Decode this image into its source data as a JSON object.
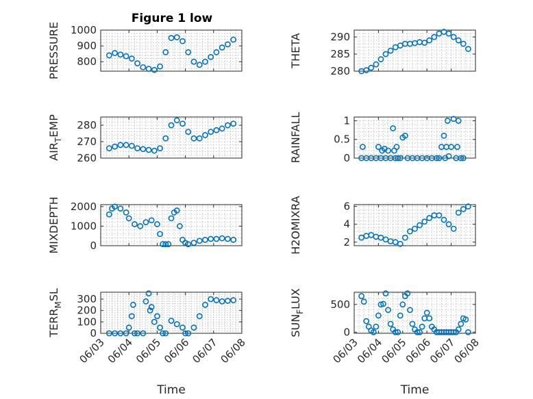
{
  "figure_title": "Figure 1 low",
  "chart_data": [
    {
      "type": "scatter",
      "ylabel": "PRESSURE",
      "title": "Figure 1 low",
      "ylim": [
        740,
        1000
      ],
      "yticks": [
        800,
        900,
        1000
      ],
      "xlim": [
        "06/03",
        "06/08"
      ],
      "x": [
        0.3,
        0.5,
        0.7,
        0.9,
        1.1,
        1.3,
        1.5,
        1.7,
        1.9,
        2.1,
        2.3,
        2.5,
        2.7,
        2.9,
        3.1,
        3.3,
        3.5,
        3.7,
        3.9,
        4.1,
        4.3,
        4.5,
        4.7
      ],
      "y": [
        840,
        855,
        845,
        835,
        820,
        790,
        765,
        755,
        748,
        770,
        860,
        950,
        955,
        930,
        860,
        800,
        780,
        800,
        830,
        860,
        890,
        910,
        940
      ]
    },
    {
      "type": "scatter",
      "ylabel": "THETA",
      "ylim": [
        280,
        292
      ],
      "yticks": [
        280,
        285,
        290
      ],
      "xlim": [
        "06/03",
        "06/08"
      ],
      "x": [
        0.3,
        0.5,
        0.7,
        0.9,
        1.1,
        1.3,
        1.5,
        1.7,
        1.9,
        2.1,
        2.3,
        2.5,
        2.7,
        2.9,
        3.1,
        3.3,
        3.5,
        3.7,
        3.9,
        4.1,
        4.3,
        4.5,
        4.7
      ],
      "y": [
        280,
        280.3,
        281,
        282,
        283.5,
        285,
        286,
        287,
        287.5,
        288,
        288,
        288.2,
        288.5,
        288.3,
        289,
        290,
        291,
        291.5,
        291,
        290,
        289,
        288,
        286.5
      ]
    },
    {
      "type": "scatter",
      "ylabel": "AIR_TEMP",
      "ylim": [
        260,
        285
      ],
      "yticks": [
        260,
        270,
        280
      ],
      "xlim": [
        "06/03",
        "06/08"
      ],
      "x": [
        0.3,
        0.5,
        0.7,
        0.9,
        1.1,
        1.3,
        1.5,
        1.7,
        1.9,
        2.1,
        2.3,
        2.5,
        2.7,
        2.9,
        3.1,
        3.3,
        3.5,
        3.7,
        3.9,
        4.1,
        4.3,
        4.5,
        4.7
      ],
      "y": [
        266,
        267,
        268,
        268,
        267.5,
        266,
        265.5,
        265,
        264.5,
        266,
        272,
        280,
        283,
        281,
        276,
        272,
        272,
        274,
        276,
        277,
        278,
        280,
        281
      ]
    },
    {
      "type": "scatter",
      "ylabel": "RAINFALL",
      "ylim": [
        0,
        1.1
      ],
      "yticks": [
        0,
        0.5,
        1
      ],
      "xlim": [
        "06/03",
        "06/08"
      ],
      "x": [
        0.3,
        0.35,
        0.5,
        0.7,
        0.9,
        1.0,
        1.1,
        1.15,
        1.25,
        1.3,
        1.4,
        1.5,
        1.6,
        1.65,
        1.7,
        1.75,
        1.8,
        1.9,
        2.0,
        2.1,
        2.2,
        2.4,
        2.6,
        2.8,
        3.0,
        3.2,
        3.4,
        3.5,
        3.6,
        3.7,
        3.75,
        3.8,
        3.85,
        3.9,
        4.0,
        4.1,
        4.2,
        4.25,
        4.3,
        4.4,
        4.5
      ],
      "y": [
        0,
        0.3,
        0,
        0,
        0,
        0.3,
        0,
        0.2,
        0.25,
        0,
        0.2,
        0,
        0.8,
        0.2,
        0,
        0.3,
        0,
        0,
        0.55,
        0.6,
        0,
        0,
        0,
        0,
        0,
        0,
        0,
        0,
        0.3,
        0.6,
        0,
        0.3,
        1.0,
        0.05,
        0.3,
        1.05,
        0,
        0.3,
        1.0,
        0,
        0
      ]
    },
    {
      "type": "scatter",
      "ylabel": "MIXDEPTH",
      "ylim": [
        0,
        2100
      ],
      "yticks": [
        0,
        1000,
        2000
      ],
      "xlim": [
        "06/03",
        "06/08"
      ],
      "x": [
        0.3,
        0.4,
        0.5,
        0.7,
        0.9,
        1.0,
        1.2,
        1.4,
        1.6,
        1.8,
        2.0,
        2.1,
        2.2,
        2.3,
        2.4,
        2.5,
        2.6,
        2.7,
        2.8,
        2.9,
        3.0,
        3.1,
        3.3,
        3.5,
        3.7,
        3.9,
        4.1,
        4.3,
        4.5,
        4.7
      ],
      "y": [
        1600,
        1900,
        2000,
        1900,
        1700,
        1400,
        1100,
        1000,
        1200,
        1300,
        1100,
        600,
        80,
        80,
        80,
        1400,
        1700,
        1800,
        1000,
        300,
        150,
        80,
        150,
        250,
        300,
        350,
        350,
        380,
        350,
        300
      ]
    },
    {
      "type": "scatter",
      "ylabel": "H2OMIXRA",
      "ylim": [
        1.6,
        6.2
      ],
      "yticks": [
        2,
        4,
        6
      ],
      "xlim": [
        "06/03",
        "06/08"
      ],
      "x": [
        0.3,
        0.5,
        0.7,
        0.9,
        1.1,
        1.3,
        1.5,
        1.7,
        1.9,
        2.1,
        2.3,
        2.5,
        2.7,
        2.9,
        3.1,
        3.3,
        3.5,
        3.7,
        3.9,
        4.1,
        4.3,
        4.5,
        4.7
      ],
      "y": [
        2.5,
        2.7,
        2.8,
        2.6,
        2.5,
        2.3,
        2.1,
        2.0,
        1.8,
        2.5,
        3.2,
        3.5,
        3.9,
        4.3,
        4.7,
        5.0,
        5.0,
        4.5,
        4.0,
        3.5,
        5.3,
        5.7,
        6.0
      ]
    },
    {
      "type": "scatter",
      "ylabel": "TERR_MSL",
      "ylim": [
        0,
        360
      ],
      "yticks": [
        0,
        100,
        200,
        300
      ],
      "xlim": [
        "06/03",
        "06/08"
      ],
      "x": [
        0.3,
        0.5,
        0.7,
        0.9,
        1.0,
        1.1,
        1.15,
        1.2,
        1.3,
        1.5,
        1.6,
        1.7,
        1.75,
        1.8,
        1.9,
        2.0,
        2.1,
        2.2,
        2.3,
        2.5,
        2.7,
        2.9,
        3.0,
        3.1,
        3.3,
        3.5,
        3.7,
        3.9,
        4.1,
        4.3,
        4.5,
        4.7
      ],
      "y": [
        0,
        0,
        0,
        0,
        50,
        150,
        250,
        0,
        0,
        0,
        280,
        350,
        200,
        230,
        100,
        150,
        50,
        0,
        0,
        110,
        80,
        50,
        0,
        0,
        50,
        150,
        250,
        300,
        290,
        280,
        285,
        290
      ]
    },
    {
      "type": "scatter",
      "ylabel": "SUN_FLUX",
      "ylim": [
        -20,
        720
      ],
      "yticks": [
        0,
        500
      ],
      "xlim": [
        "06/03",
        "06/08"
      ],
      "x": [
        0.3,
        0.4,
        0.5,
        0.6,
        0.7,
        0.8,
        0.9,
        1.0,
        1.1,
        1.2,
        1.3,
        1.4,
        1.5,
        1.6,
        1.7,
        1.8,
        1.9,
        2.0,
        2.1,
        2.2,
        2.3,
        2.4,
        2.5,
        2.6,
        2.7,
        2.8,
        2.9,
        3.0,
        3.1,
        3.2,
        3.3,
        3.4,
        3.5,
        3.6,
        3.7,
        3.8,
        3.9,
        4.0,
        4.1,
        4.2,
        4.3,
        4.4,
        4.5,
        4.6,
        4.7
      ],
      "y": [
        650,
        550,
        200,
        100,
        30,
        0,
        100,
        300,
        500,
        510,
        700,
        400,
        150,
        50,
        0,
        0,
        300,
        500,
        650,
        700,
        400,
        150,
        50,
        0,
        0,
        100,
        250,
        350,
        250,
        100,
        50,
        0,
        0,
        0,
        0,
        0,
        0,
        0,
        0,
        0,
        50,
        150,
        250,
        230,
        0
      ]
    }
  ],
  "xaxis": {
    "ticks": [
      "06/03",
      "06/04",
      "06/05",
      "06/06",
      "06/07",
      "06/08"
    ],
    "label": "Time"
  }
}
